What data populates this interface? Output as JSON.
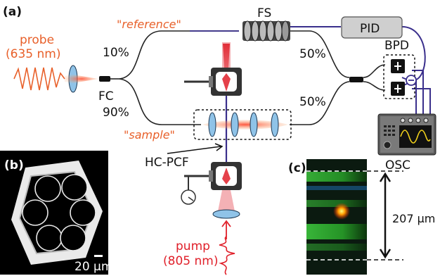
{
  "panels": {
    "a": "(a)",
    "b": "(b)",
    "c": "(c)"
  },
  "probe": {
    "label": "probe",
    "wavelength": "(635 nm)"
  },
  "pump": {
    "label": "pump",
    "wavelength": "(805 nm)"
  },
  "arms": {
    "reference": "\"reference\"",
    "sample": "\"sample\""
  },
  "components": {
    "fs": "FS",
    "pid": "PID",
    "bpd": "BPD",
    "fc": "FC",
    "osc": "OSC",
    "hcpcf": "HC-PCF"
  },
  "splits": {
    "top_left": "10%",
    "bottom_left": "90%",
    "top_right": "50%",
    "bottom_right": "50%"
  },
  "scalebar": "20 μm",
  "dimension": "207 μm",
  "colors": {
    "fiber": "#222222",
    "electrical": "#3a2f8c",
    "probe": "#e8602a",
    "pump": "#e0202a",
    "lens": "#8fc3e8"
  }
}
